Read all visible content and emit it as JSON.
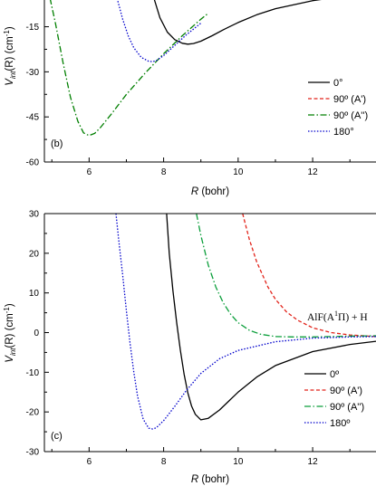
{
  "chart_data": [
    {
      "type": "line",
      "panel_label": "(b)",
      "xlabel_var": "R",
      "xlabel_unit": " (bohr)",
      "ylabel_main": "V",
      "ylabel_sub": "int",
      "ylabel_rest": "(R) (cm",
      "ylabel_sup": "-1",
      "ylabel_close": ")",
      "xlim": [
        4.8,
        13.7
      ],
      "ylim": [
        -60,
        -5.5
      ],
      "xticks": [
        6,
        8,
        10,
        12
      ],
      "xtick_labels": [
        "6",
        "8",
        "10",
        "12"
      ],
      "yticks": [
        -15,
        -30,
        -45,
        -60
      ],
      "ytick_labels": [
        "-15",
        "-30",
        "-45",
        "-60"
      ],
      "grid": false,
      "legend_position": "center-right",
      "series": [
        {
          "name": "0°",
          "color": "#000000",
          "dash": "",
          "x": [
            7.74,
            7.9,
            8.1,
            8.3,
            8.5,
            8.65,
            8.8,
            9.0,
            9.3,
            9.6,
            10.0,
            10.5,
            11.0,
            12.0,
            13.0,
            13.7
          ],
          "y": [
            -5.5,
            -12.0,
            -16.8,
            -19.3,
            -20.5,
            -20.8,
            -20.6,
            -19.8,
            -18.0,
            -16.0,
            -13.6,
            -11.0,
            -9.0,
            -6.3,
            -4.6,
            -3.8
          ]
        },
        {
          "name": "90º (A')",
          "color": "#e2231a",
          "dash": "4,2.5",
          "x": [],
          "y": []
        },
        {
          "name": "90º (A'')",
          "color": "#007f00",
          "dash": "7,2.5,1.5,2.5",
          "x": [
            4.95,
            5.1,
            5.3,
            5.5,
            5.7,
            5.85,
            6.0,
            6.15,
            6.3,
            6.6,
            7.0,
            7.5,
            8.0,
            8.5,
            9.0,
            9.2
          ],
          "y": [
            -5.5,
            -14.0,
            -27.0,
            -38.5,
            -46.5,
            -50.3,
            -51.2,
            -50.5,
            -48.6,
            -44.0,
            -37.5,
            -30.5,
            -24.0,
            -18.0,
            -12.5,
            -10.5
          ]
        },
        {
          "name": "180°",
          "color": "#0000cc",
          "dash": "1.5,1.8",
          "x": [
            6.75,
            6.9,
            7.05,
            7.2,
            7.4,
            7.6,
            7.7,
            7.8,
            8.0,
            8.3,
            8.6,
            9.0
          ],
          "y": [
            -5.5,
            -12.5,
            -18.0,
            -22.0,
            -25.2,
            -26.5,
            -26.6,
            -26.3,
            -24.6,
            -21.2,
            -17.8,
            -13.8
          ]
        }
      ]
    },
    {
      "type": "line",
      "panel_label": "(c)",
      "xlabel_var": "R",
      "xlabel_unit": " (bohr)",
      "ylabel_main": "V",
      "ylabel_sub": "int",
      "ylabel_rest": "(R) (cm",
      "ylabel_sup": "-1",
      "ylabel_close": ")",
      "xlim": [
        4.8,
        13.7
      ],
      "ylim": [
        -30,
        30
      ],
      "xticks": [
        6,
        8,
        10,
        12
      ],
      "xtick_labels": [
        "6",
        "8",
        "10",
        "12"
      ],
      "yticks": [
        30,
        20,
        10,
        0,
        -10,
        -20,
        -30
      ],
      "ytick_labels": [
        "30",
        "20",
        "10",
        "0",
        "-10",
        "-20",
        "-30"
      ],
      "grid": false,
      "legend_position": "lower-right",
      "annotation": {
        "prefix": "AlF(A",
        "sup": "1",
        "symbol": "Π",
        "suffix": ") + H",
        "x": 13.2,
        "y": 3.5
      },
      "series": [
        {
          "name": "0º",
          "color": "#000000",
          "dash": "",
          "x": [
            8.08,
            8.15,
            8.25,
            8.35,
            8.45,
            8.55,
            8.65,
            8.75,
            8.85,
            9.0,
            9.2,
            9.5,
            10.0,
            10.5,
            11.0,
            12.0,
            13.0,
            13.7
          ],
          "y": [
            30,
            20.0,
            10.5,
            2.5,
            -4.5,
            -10.5,
            -15.2,
            -18.5,
            -20.6,
            -22.0,
            -21.6,
            -19.5,
            -15.0,
            -11.2,
            -8.3,
            -4.8,
            -3.0,
            -2.2
          ]
        },
        {
          "name": "90º (A')",
          "color": "#e2231a",
          "dash": "4,2.5",
          "x": [
            10.12,
            10.3,
            10.5,
            10.8,
            11.0,
            11.3,
            11.6,
            12.0,
            12.5,
            13.0,
            13.7
          ],
          "y": [
            30,
            23.5,
            17.8,
            11.5,
            8.4,
            5.2,
            3.1,
            1.2,
            0.0,
            -0.6,
            -1.0
          ]
        },
        {
          "name": "90º (A'')",
          "color": "#0a9e3a",
          "dash": "7,2.5,1.5,2.5",
          "x": [
            8.88,
            9.0,
            9.2,
            9.4,
            9.6,
            9.8,
            10.0,
            10.3,
            10.6,
            11.0,
            11.5,
            12.0,
            13.0,
            13.7
          ],
          "y": [
            30,
            24.5,
            17.0,
            11.5,
            7.5,
            4.6,
            2.5,
            0.6,
            -0.4,
            -1.0,
            -1.1,
            -1.1,
            -0.9,
            -0.8
          ]
        },
        {
          "name": "180º",
          "color": "#0000cc",
          "dash": "1.5,1.8",
          "x": [
            6.72,
            6.8,
            6.9,
            7.0,
            7.1,
            7.2,
            7.3,
            7.45,
            7.6,
            7.7,
            7.8,
            8.0,
            8.3,
            8.6,
            9.0,
            9.5,
            10.0,
            11.0,
            12.0,
            13.0,
            13.7
          ],
          "y": [
            30,
            23.0,
            14.5,
            5.5,
            -2.8,
            -10.0,
            -16.0,
            -21.8,
            -24.1,
            -24.3,
            -24.0,
            -22.2,
            -18.6,
            -14.7,
            -10.3,
            -6.6,
            -4.5,
            -2.3,
            -1.4,
            -1.1,
            -1.0
          ]
        }
      ]
    }
  ]
}
